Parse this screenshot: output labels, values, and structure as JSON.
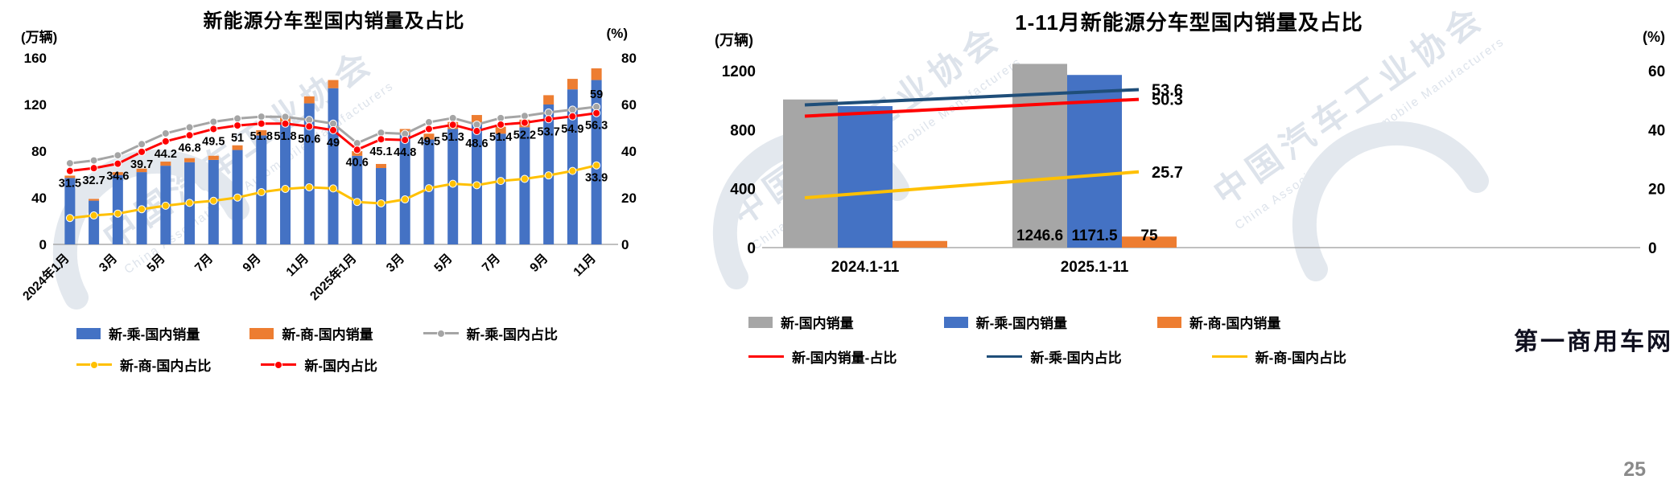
{
  "watermark": {
    "cn": "中国汽车工业协会",
    "en": "China Association of Automobile Manufacturers"
  },
  "footer": {
    "brand": "第一商用车网",
    "page_number": "25"
  },
  "colors": {
    "bar_blue": "#4472C4",
    "bar_orange": "#ED7D31",
    "bar_grey": "#A6A6A6",
    "line_grey": "#A5A5A5",
    "line_red": "#FF0000",
    "line_yellow": "#FFC000",
    "line_navy": "#1F4E79"
  },
  "chart_data": [
    {
      "id": "left",
      "type": "bar+line",
      "title": "新能源分车型国内销量及占比",
      "left_axis_unit": "(万辆)",
      "right_axis_unit": "(%)",
      "left_axis_range": [
        0,
        160
      ],
      "right_axis_range": [
        0,
        80
      ],
      "left_axis_ticks": [
        0,
        40,
        80,
        120,
        160
      ],
      "right_axis_ticks": [
        0,
        20,
        40,
        60,
        80
      ],
      "grid": false,
      "legend_position": "bottom",
      "x_tick_labels": [
        "2024年1月",
        "3月",
        "5月",
        "7月",
        "9月",
        "11月",
        "2025年1月",
        "3月",
        "5月",
        "7月",
        "9月",
        "11月"
      ],
      "bar_series": [
        {
          "name": "新-乘-国内销量",
          "color_key": "bar_blue",
          "values": [
            57,
            37.5,
            59.5,
            62,
            67.5,
            70.5,
            72.5,
            81,
            93.5,
            105,
            121,
            134,
            76,
            65.5,
            94,
            90,
            99,
            104.5,
            95,
            100.5,
            120,
            133,
            141
          ]
        },
        {
          "name": "新-商-国内销量",
          "color_key": "bar_orange",
          "values": [
            2,
            1.5,
            2.5,
            3,
            3.5,
            3.5,
            3.5,
            4,
            4.5,
            5,
            6,
            7,
            4,
            3.5,
            5,
            5,
            6,
            6.5,
            6,
            6.5,
            8,
            9,
            10
          ]
        }
      ],
      "line_series": [
        {
          "name": "新-乘-国内占比",
          "color_key": "line_grey",
          "marker": true,
          "label_position": "above",
          "values": [
            34.8,
            36,
            38.2,
            43,
            47.6,
            50.2,
            52.6,
            54,
            54.8,
            54.7,
            53.4,
            51.8,
            43.4,
            47.9,
            47.4,
            52.4,
            54.2,
            51.4,
            54.2,
            55.1,
            56.6,
            57.8,
            59
          ],
          "point_labels": [
            null,
            null,
            null,
            null,
            null,
            null,
            null,
            null,
            null,
            null,
            null,
            null,
            null,
            null,
            null,
            null,
            null,
            null,
            null,
            null,
            null,
            null,
            "59"
          ]
        },
        {
          "name": "新-国内占比",
          "color_key": "line_red",
          "marker": true,
          "label_position": "below",
          "values": [
            31.5,
            32.7,
            34.6,
            39.7,
            44.2,
            46.8,
            49.5,
            51,
            51.8,
            51.8,
            50.6,
            49,
            40.6,
            45.1,
            44.8,
            49.5,
            51.3,
            48.6,
            51.4,
            52.2,
            53.7,
            54.9,
            56.3
          ],
          "point_labels": [
            "31.5",
            "32.7",
            "34.6",
            "39.7",
            "44.2",
            "46.8",
            "49.5",
            "51",
            "51.8",
            "51.8",
            "50.6",
            "49",
            "40.6",
            "45.1",
            "44.8",
            "49.5",
            "51.3",
            "48.6",
            "51.4",
            "52.2",
            "53.7",
            "54.9",
            "56.3"
          ]
        },
        {
          "name": "新-商-国内占比",
          "color_key": "line_yellow",
          "marker": true,
          "label_position": "below",
          "values": [
            11.3,
            12.4,
            13.2,
            15.1,
            16.6,
            17.8,
            18.7,
            20.1,
            22.4,
            23.8,
            24.5,
            24,
            18.2,
            17.6,
            19.3,
            24.1,
            26,
            25.4,
            27.2,
            28.1,
            29.6,
            31.5,
            33.9
          ],
          "point_labels": [
            null,
            null,
            null,
            null,
            null,
            null,
            null,
            null,
            null,
            null,
            null,
            null,
            null,
            null,
            null,
            null,
            null,
            null,
            null,
            null,
            null,
            null,
            "33.9"
          ]
        }
      ],
      "legend_rows": [
        [
          {
            "label": "新-乘-国内销量",
            "swatch": "bar",
            "color_key": "bar_blue"
          },
          {
            "label": "新-商-国内销量",
            "swatch": "bar",
            "color_key": "bar_orange"
          },
          {
            "label": "新-乘-国内占比",
            "swatch": "line",
            "marker": true,
            "color_key": "line_grey"
          }
        ],
        [
          {
            "label": "新-商-国内占比",
            "swatch": "line",
            "marker": true,
            "color_key": "line_yellow"
          },
          {
            "label": "新-国内占比",
            "swatch": "line",
            "marker": true,
            "color_key": "line_red"
          }
        ]
      ]
    },
    {
      "id": "right",
      "type": "bar+line",
      "title": "1-11月新能源分车型国内销量及占比",
      "left_axis_unit": "(万辆)",
      "right_axis_unit": "(%)",
      "left_axis_range": [
        0,
        1200
      ],
      "right_axis_range": [
        0,
        60
      ],
      "left_axis_ticks": [
        0,
        400,
        800,
        1200
      ],
      "right_axis_ticks": [
        0,
        20,
        40,
        60
      ],
      "grid": false,
      "legend_position": "bottom",
      "x_tick_labels": [
        "2024.1-11",
        "2025.1-11"
      ],
      "bar_series": [
        {
          "name": "新-国内销量",
          "color_key": "bar_grey",
          "values": [
            1005,
            1246.6
          ],
          "point_labels": [
            null,
            "1246.6"
          ]
        },
        {
          "name": "新-乘-国内销量",
          "color_key": "bar_blue",
          "values": [
            960,
            1171.5
          ],
          "point_labels": [
            null,
            "1171.5"
          ]
        },
        {
          "name": "新-商-国内销量",
          "color_key": "bar_orange",
          "values": [
            45,
            75
          ],
          "point_labels": [
            null,
            "75"
          ]
        }
      ],
      "line_series": [
        {
          "name": "新-国内销量-占比",
          "color_key": "line_red",
          "values": [
            44.6,
            50.3
          ],
          "point_labels": [
            null,
            "50.3"
          ]
        },
        {
          "name": "新-乘-国内占比",
          "color_key": "line_navy",
          "values": [
            48.4,
            53.6
          ],
          "point_labels": [
            null,
            "53.6"
          ]
        },
        {
          "name": "新-商-国内占比",
          "color_key": "line_yellow",
          "values": [
            16.9,
            25.7
          ],
          "point_labels": [
            null,
            "25.7"
          ]
        }
      ],
      "legend_rows": [
        [
          {
            "label": "新-国内销量",
            "swatch": "bar",
            "color_key": "bar_grey"
          },
          {
            "label": "新-乘-国内销量",
            "swatch": "bar",
            "color_key": "bar_blue"
          },
          {
            "label": "新-商-国内销量",
            "swatch": "bar",
            "color_key": "bar_orange"
          }
        ],
        [
          {
            "label": "新-国内销量-占比",
            "swatch": "line",
            "marker": false,
            "color_key": "line_red"
          },
          {
            "label": "新-乘-国内占比",
            "swatch": "line",
            "marker": false,
            "color_key": "line_navy"
          },
          {
            "label": "新-商-国内占比",
            "swatch": "line",
            "marker": false,
            "color_key": "line_yellow"
          }
        ]
      ]
    }
  ]
}
